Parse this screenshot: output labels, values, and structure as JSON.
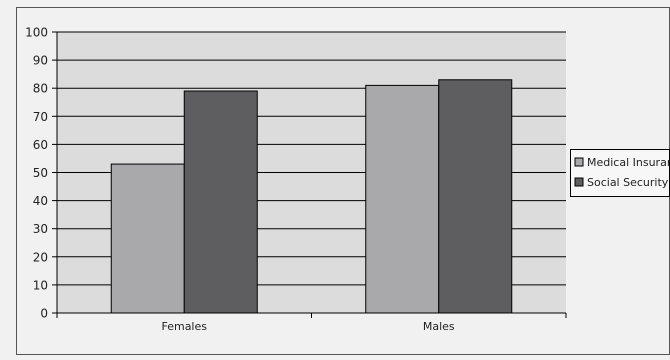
{
  "chart_data": {
    "type": "bar",
    "categories": [
      "Females",
      "Males"
    ],
    "series": [
      {
        "name": "Medical Insurance",
        "values": [
          53,
          81
        ],
        "color": "#a9a9ab"
      },
      {
        "name": "Social Security",
        "values": [
          79,
          83
        ],
        "color": "#5e5e60"
      }
    ],
    "ylim": [
      0,
      100
    ],
    "yticks": [
      0,
      10,
      20,
      30,
      40,
      50,
      60,
      70,
      80,
      90,
      100
    ],
    "grid": true,
    "legend": "right",
    "title": "",
    "xlabel": "",
    "ylabel": ""
  },
  "colors": {
    "page_background": "#f1f1f1",
    "plot_background": "#dcdcdc",
    "gridline": "#000000"
  }
}
